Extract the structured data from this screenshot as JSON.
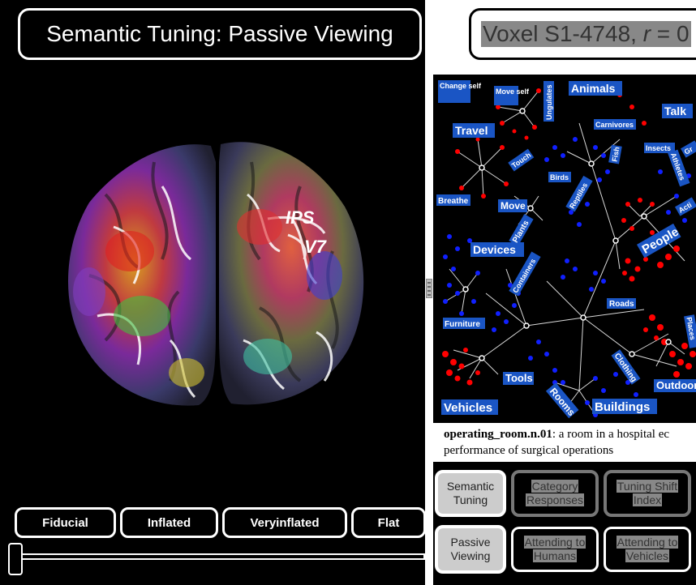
{
  "left": {
    "title": "Semantic Tuning: Passive Viewing",
    "brain_labels": {
      "ips": "IPS",
      "v7": "V7"
    },
    "view_buttons": [
      {
        "label": "Fiducial"
      },
      {
        "label": "Inflated"
      },
      {
        "label": "Veryinflated"
      },
      {
        "label": "Flat"
      }
    ],
    "slider_value": 0
  },
  "right": {
    "voxel_prefix": "Voxel S1-4748, ",
    "voxel_r": "r",
    "voxel_suffix": " = 0",
    "graph_labels": {
      "change_self": "Change self",
      "move_self": "Move self",
      "ungulates": "Ungulates",
      "animals": "Animals",
      "talk": "Talk",
      "travel": "Travel",
      "carnivores": "Carnivores",
      "touch": "Touch",
      "fish": "Fish",
      "insects": "Insects",
      "athletes": "Athletes",
      "gr": "Gr",
      "birds": "Birds",
      "reptiles": "Reptiles",
      "breathe": "Breathe",
      "move": "Move",
      "acti": "Acti",
      "plants": "Plants",
      "people": "People",
      "devices": "Devices",
      "containers": "Containers",
      "roads": "Roads",
      "places": "Places",
      "furniture": "Furniture",
      "clothing": "Clothing",
      "tools": "Tools",
      "rooms": "Rooms",
      "outdoor": "Outdoor",
      "vehicles": "Vehicles",
      "buildings": "Buildings"
    },
    "description": {
      "term": "operating_room.n.01",
      "line1": ": a room in a hospital ec",
      "line2": "performance of surgical operations"
    },
    "tabs": [
      {
        "line1": "Semantic",
        "line2": "Tuning",
        "active": true
      },
      {
        "line1": "Category",
        "line2": "Responses",
        "active": false
      },
      {
        "line1": "Tuning Shift",
        "line2": "Index",
        "active": false
      },
      {
        "line1": "Passive",
        "line2": "Viewing",
        "active": true
      },
      {
        "line1": "Attending to",
        "line2": "Humans",
        "active": false
      },
      {
        "line1": "Attending to",
        "line2": "Vehicles",
        "active": false
      }
    ]
  },
  "colors": {
    "label_bg": "#1a55c4",
    "node_red": "#ff0000",
    "node_blue": "#1020ff",
    "edge": "#ffffff"
  }
}
